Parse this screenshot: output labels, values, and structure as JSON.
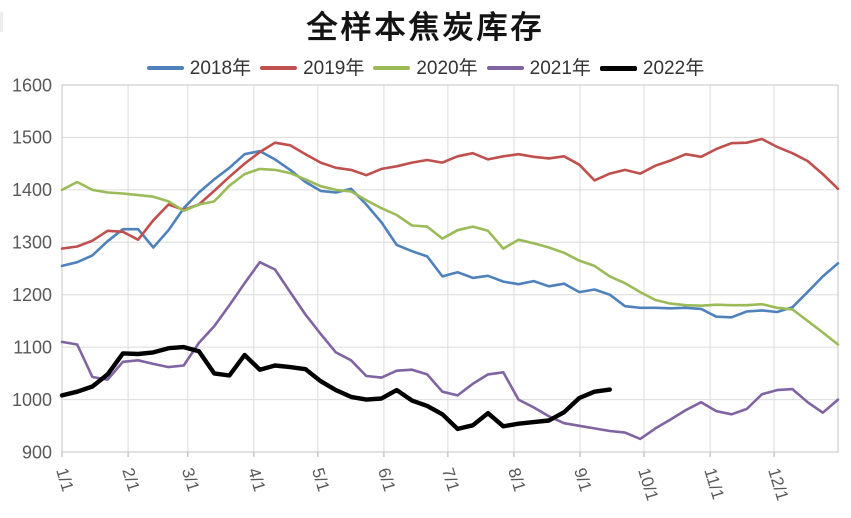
{
  "title": "全样本焦炭库存",
  "chart_data": {
    "type": "line",
    "title": "全样本焦炭库存",
    "grid": true,
    "legend_position": "top",
    "ylim": [
      900,
      1600
    ],
    "y_ticks": [
      900,
      1000,
      1100,
      1200,
      1300,
      1400,
      1500,
      1600
    ],
    "x_axis": {
      "tick_labels": [
        "1/1",
        "2/1",
        "3/1",
        "4/1",
        "5/1",
        "6/1",
        "7/1",
        "8/1",
        "9/1",
        "10/1",
        "11/1",
        "12/1"
      ],
      "sampling": "weekly",
      "points_per_year": 52
    },
    "series": [
      {
        "name": "2018年",
        "color": "#4F81BD",
        "stroke_width": 2.6,
        "values": [
          1255,
          1262,
          1275,
          1302,
          1325,
          1325,
          1290,
          1323,
          1365,
          1395,
          1420,
          1442,
          1468,
          1474,
          1458,
          1438,
          1415,
          1398,
          1395,
          1402,
          1372,
          1338,
          1295,
          1283,
          1273,
          1235,
          1243,
          1232,
          1236,
          1225,
          1220,
          1226,
          1216,
          1221,
          1205,
          1210,
          1200,
          1178,
          1175,
          1175,
          1174,
          1175,
          1173,
          1158,
          1157,
          1168,
          1170,
          1167,
          1176,
          1205,
          1235,
          1260
        ]
      },
      {
        "name": "2019年",
        "color": "#C0504D",
        "stroke_width": 2.6,
        "values": [
          1288,
          1292,
          1303,
          1322,
          1320,
          1305,
          1342,
          1372,
          1362,
          1372,
          1398,
          1425,
          1450,
          1472,
          1490,
          1485,
          1468,
          1452,
          1442,
          1438,
          1428,
          1440,
          1445,
          1452,
          1457,
          1452,
          1464,
          1470,
          1458,
          1464,
          1468,
          1463,
          1460,
          1464,
          1448,
          1418,
          1431,
          1438,
          1431,
          1446,
          1456,
          1468,
          1463,
          1478,
          1489,
          1490,
          1497,
          1482,
          1470,
          1455,
          1430,
          1402
        ]
      },
      {
        "name": "2020年",
        "color": "#9BBB59",
        "stroke_width": 2.6,
        "values": [
          1400,
          1415,
          1400,
          1395,
          1393,
          1390,
          1387,
          1378,
          1360,
          1372,
          1378,
          1408,
          1430,
          1440,
          1438,
          1432,
          1420,
          1407,
          1400,
          1397,
          1380,
          1365,
          1352,
          1332,
          1330,
          1307,
          1323,
          1330,
          1322,
          1288,
          1305,
          1298,
          1290,
          1280,
          1265,
          1255,
          1235,
          1222,
          1205,
          1190,
          1183,
          1180,
          1179,
          1181,
          1180,
          1180,
          1182,
          1175,
          1172,
          1150,
          1128,
          1105
        ]
      },
      {
        "name": "2021年",
        "color": "#8064A2",
        "stroke_width": 2.6,
        "values": [
          1110,
          1105,
          1043,
          1038,
          1072,
          1075,
          1068,
          1062,
          1065,
          1108,
          1140,
          1180,
          1222,
          1262,
          1248,
          1205,
          1162,
          1125,
          1090,
          1075,
          1045,
          1042,
          1055,
          1057,
          1048,
          1015,
          1008,
          1030,
          1048,
          1052,
          1000,
          985,
          968,
          955,
          950,
          945,
          940,
          937,
          925,
          945,
          962,
          980,
          995,
          978,
          972,
          982,
          1010,
          1018,
          1020,
          995,
          975,
          1000
        ]
      },
      {
        "name": "2022年",
        "color": "#000000",
        "stroke_width": 4.4,
        "values": [
          1008,
          1015,
          1025,
          1048,
          1088,
          1087,
          1090,
          1098,
          1100,
          1092,
          1050,
          1046,
          1085,
          1057,
          1065,
          1062,
          1058,
          1035,
          1018,
          1005,
          1000,
          1002,
          1018,
          998,
          988,
          972,
          944,
          951,
          974,
          949,
          954,
          957,
          960,
          976,
          1003,
          1015,
          1019
        ]
      }
    ]
  }
}
